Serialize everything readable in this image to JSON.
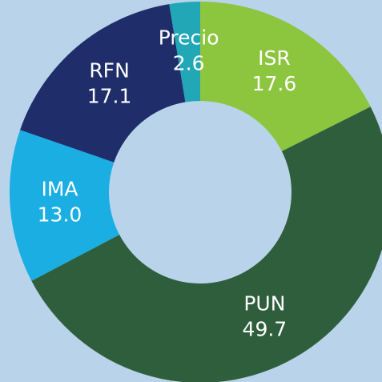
{
  "chart_data": {
    "type": "donut",
    "categories": [
      "ISR",
      "PUN",
      "IMA",
      "RFN",
      "Precio"
    ],
    "values": [
      17.6,
      49.7,
      13.0,
      17.1,
      2.6
    ],
    "value_labels": [
      "17.6",
      "49.7",
      "13.0",
      "17.1",
      "2.6"
    ],
    "colors": [
      "#8cc63f",
      "#2f5e3c",
      "#1aaee3",
      "#1f2d6a",
      "#21a7b6"
    ]
  }
}
